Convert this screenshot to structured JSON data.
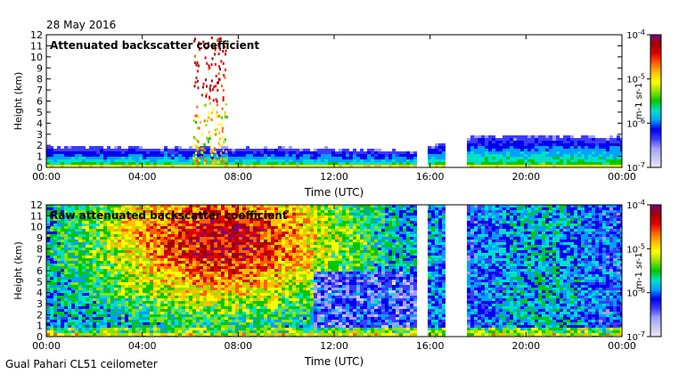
{
  "date": "28 May 2016",
  "footer": "Gual Pahari CL51 ceilometer",
  "colors": [
    "#e8e8f8",
    "#c8c8f0",
    "#a0a0ff",
    "#3c3cff",
    "#0000f0",
    "#00a0ff",
    "#00e0c8",
    "#00c800",
    "#90e000",
    "#ffff00",
    "#ffc000",
    "#ff6000",
    "#e00000",
    "#a00000",
    "#800080"
  ],
  "chart_data": [
    {
      "type": "heatmap",
      "title": "Attenuated backscatter coefficient",
      "xlabel": "Time (UTC)",
      "ylabel": "Height (km)",
      "xticks": [
        "00:00",
        "04:00",
        "08:00",
        "12:00",
        "16:00",
        "20:00",
        "00:00"
      ],
      "xlim_hours": [
        0,
        24
      ],
      "ylim": [
        0,
        12
      ],
      "yticks": [
        0,
        1,
        2,
        3,
        4,
        5,
        6,
        7,
        8,
        9,
        10,
        11,
        12
      ],
      "colorbar": {
        "label": "m-1 sr-1",
        "scale": "log",
        "range": [
          1e-07,
          0.0001
        ],
        "ticks": [
          "10-7",
          "10-6",
          "10-5",
          "10-4"
        ]
      },
      "data_gaps_hours": [
        [
          15.45,
          15.85
        ],
        [
          16.6,
          17.1
        ],
        [
          17.2,
          17.5
        ]
      ],
      "features": {
        "aerosol_layer_top_km": {
          "00:00": 2.0,
          "12:00": 1.8,
          "15:00": 1.6,
          "20:00": 3.0,
          "24:00": 2.9
        },
        "cloud_event_hours": [
          6.1,
          7.5
        ],
        "cloud_event_height_km": [
          0.5,
          12
        ]
      }
    },
    {
      "type": "heatmap",
      "title": "Raw attenuated backscatter coefficient",
      "xlabel": "Time (UTC)",
      "ylabel": "Height (km)",
      "xticks": [
        "00:00",
        "04:00",
        "08:00",
        "12:00",
        "16:00",
        "20:00",
        "00:00"
      ],
      "xlim_hours": [
        0,
        24
      ],
      "ylim": [
        0,
        12
      ],
      "yticks": [
        0,
        1,
        2,
        3,
        4,
        5,
        6,
        7,
        8,
        9,
        10,
        11,
        12
      ],
      "colorbar": {
        "label": "m-1 sr-1",
        "scale": "log",
        "range": [
          1e-07,
          0.0001
        ],
        "ticks": [
          "10-7",
          "10-6",
          "10-5",
          "10-4"
        ]
      },
      "data_gaps_hours": [
        [
          15.45,
          15.85
        ],
        [
          16.6,
          17.1
        ],
        [
          17.2,
          17.5
        ]
      ],
      "features": {
        "max_noise_center_hours": 7.2,
        "max_noise_center_height_km": 9
      }
    }
  ]
}
